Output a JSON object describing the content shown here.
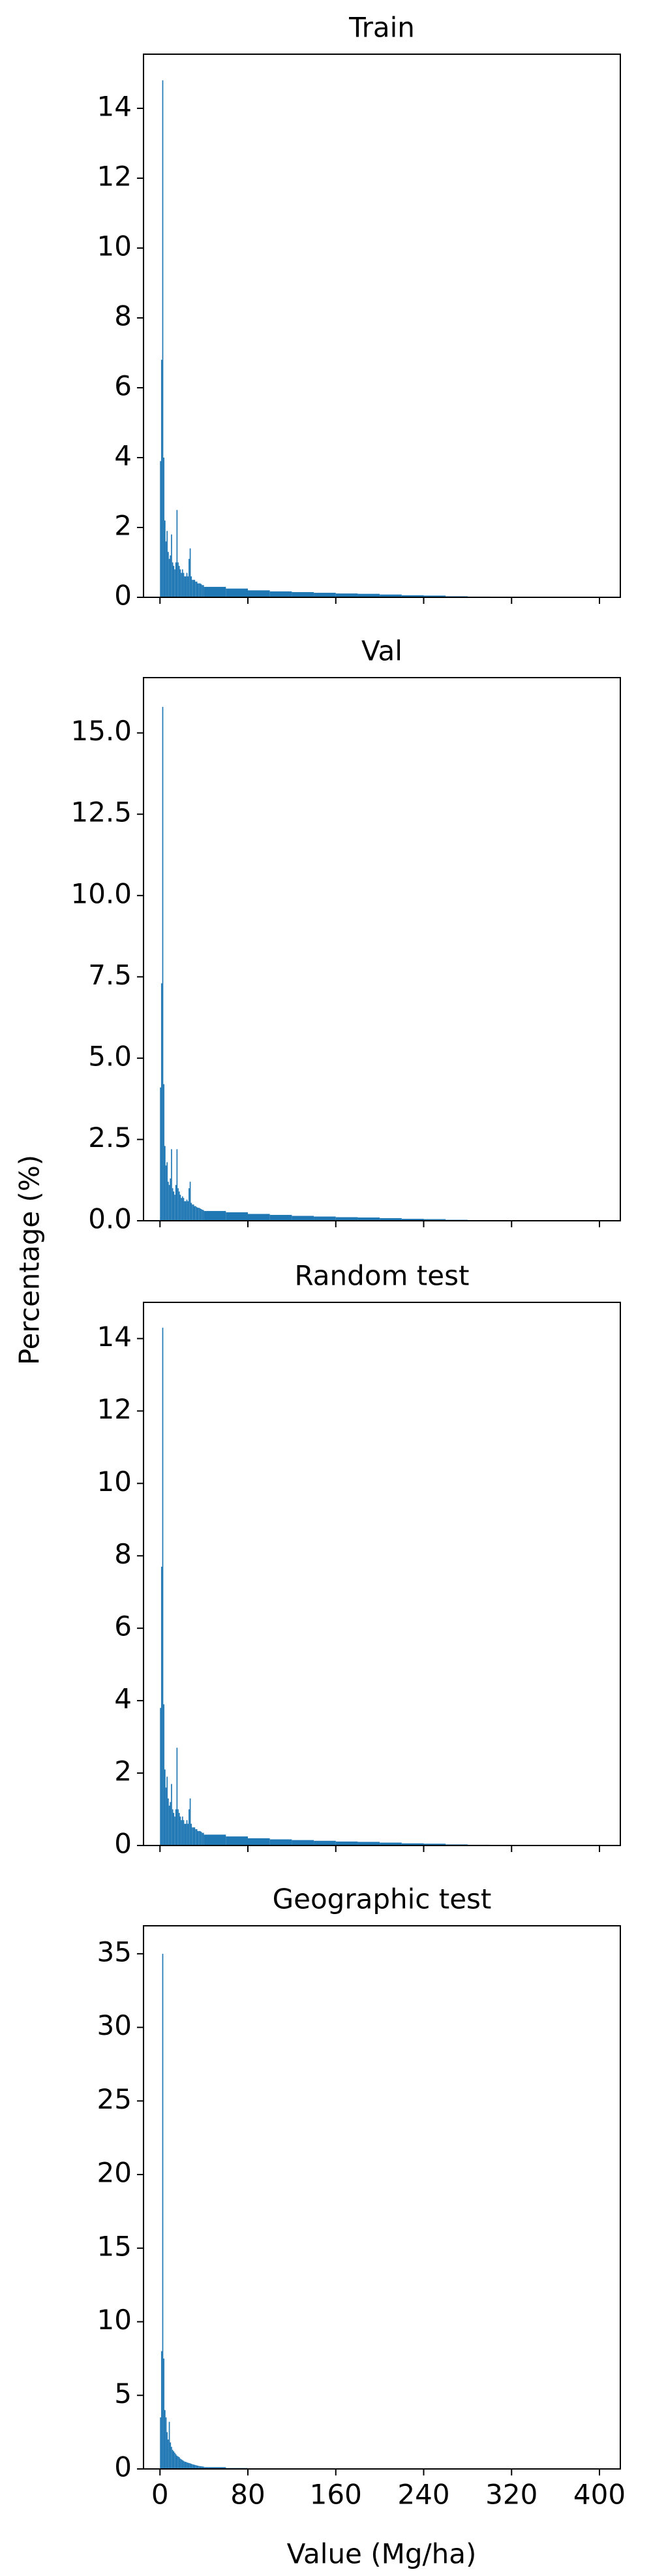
{
  "ylabel": "Percentage (%)",
  "xlabel": "Value (Mg/ha)",
  "chart_data": [
    {
      "type": "histogram",
      "title": "Train",
      "color": "#1f77b4",
      "bins": [
        0,
        1,
        2,
        3,
        4,
        5,
        6,
        7,
        8,
        9,
        10,
        11,
        12,
        13,
        14,
        15,
        16,
        17,
        18,
        19,
        20,
        21,
        22,
        23,
        24,
        25,
        26,
        27,
        28,
        29,
        30,
        31,
        32,
        33,
        34,
        35,
        36,
        37,
        38,
        39,
        40,
        60,
        80,
        100,
        120,
        140,
        160,
        180,
        200,
        220,
        240,
        260,
        280,
        300,
        320,
        340,
        360,
        380,
        400
      ],
      "values": [
        3.9,
        6.8,
        14.8,
        4.0,
        2.2,
        1.6,
        1.9,
        1.3,
        1.1,
        1.2,
        1.8,
        1.0,
        0.9,
        0.8,
        1.0,
        2.5,
        1.0,
        0.9,
        0.8,
        0.7,
        0.8,
        0.7,
        0.6,
        0.6,
        0.7,
        0.6,
        1.1,
        1.4,
        0.6,
        0.5,
        0.5,
        0.5,
        0.45,
        0.45,
        0.4,
        0.4,
        0.4,
        0.38,
        0.35,
        0.35,
        0.3,
        0.25,
        0.2,
        0.17,
        0.15,
        0.13,
        0.11,
        0.1,
        0.08,
        0.06,
        0.05,
        0.03,
        0.02,
        0.015,
        0.01,
        0.005,
        0.003,
        0.002
      ],
      "xlim": [
        -15,
        419
      ],
      "xticks": [
        0,
        80,
        160,
        240,
        320,
        400
      ],
      "ylim": [
        0,
        15.55
      ],
      "yticks": [
        0,
        2,
        4,
        6,
        8,
        10,
        12,
        14
      ]
    },
    {
      "type": "histogram",
      "title": "Val",
      "color": "#1f77b4",
      "bins": [
        0,
        1,
        2,
        3,
        4,
        5,
        6,
        7,
        8,
        9,
        10,
        11,
        12,
        13,
        14,
        15,
        16,
        17,
        18,
        19,
        20,
        21,
        22,
        23,
        24,
        25,
        26,
        27,
        28,
        29,
        30,
        31,
        32,
        33,
        34,
        35,
        36,
        37,
        38,
        39,
        40,
        60,
        80,
        100,
        120,
        140,
        160,
        180,
        200,
        220,
        240,
        260,
        280,
        300,
        320,
        340,
        360,
        380,
        400
      ],
      "values": [
        4.1,
        7.3,
        15.8,
        4.2,
        2.3,
        1.7,
        1.8,
        1.2,
        1.1,
        1.3,
        2.2,
        1.0,
        0.9,
        0.8,
        1.1,
        2.2,
        1.0,
        0.9,
        0.8,
        0.7,
        0.75,
        0.7,
        0.6,
        0.6,
        0.65,
        0.6,
        1.0,
        1.2,
        0.55,
        0.5,
        0.5,
        0.45,
        0.45,
        0.42,
        0.4,
        0.4,
        0.38,
        0.36,
        0.34,
        0.33,
        0.3,
        0.26,
        0.21,
        0.18,
        0.15,
        0.13,
        0.11,
        0.1,
        0.08,
        0.06,
        0.05,
        0.03,
        0.02,
        0.015,
        0.01,
        0.005,
        0.003,
        0.002
      ],
      "xlim": [
        -15,
        419
      ],
      "xticks": [
        0,
        80,
        160,
        240,
        320,
        400
      ],
      "ylim": [
        0,
        16.7
      ],
      "yticks": [
        {
          "value": 0,
          "label": "0.0"
        },
        {
          "value": 2.5,
          "label": "2.5"
        },
        {
          "value": 5,
          "label": "5.0"
        },
        {
          "value": 7.5,
          "label": "7.5"
        },
        {
          "value": 10,
          "label": "10.0"
        },
        {
          "value": 12.5,
          "label": "12.5"
        },
        {
          "value": 15,
          "label": "15.0"
        }
      ]
    },
    {
      "type": "histogram",
      "title": "Random test",
      "color": "#1f77b4",
      "bins": [
        0,
        1,
        2,
        3,
        4,
        5,
        6,
        7,
        8,
        9,
        10,
        11,
        12,
        13,
        14,
        15,
        16,
        17,
        18,
        19,
        20,
        21,
        22,
        23,
        24,
        25,
        26,
        27,
        28,
        29,
        30,
        31,
        32,
        33,
        34,
        35,
        36,
        37,
        38,
        39,
        40,
        60,
        80,
        100,
        120,
        140,
        160,
        180,
        200,
        220,
        240,
        260,
        280,
        300,
        320,
        340,
        360,
        380,
        400
      ],
      "values": [
        3.8,
        7.7,
        14.3,
        3.9,
        2.1,
        1.6,
        1.9,
        1.3,
        1.1,
        1.2,
        1.7,
        1.0,
        0.9,
        0.8,
        1.0,
        2.7,
        1.0,
        0.9,
        0.8,
        0.7,
        0.8,
        0.7,
        0.6,
        0.6,
        0.7,
        0.6,
        1.0,
        1.3,
        0.6,
        0.5,
        0.5,
        0.5,
        0.45,
        0.45,
        0.4,
        0.4,
        0.4,
        0.38,
        0.35,
        0.35,
        0.3,
        0.25,
        0.2,
        0.17,
        0.15,
        0.13,
        0.11,
        0.1,
        0.08,
        0.06,
        0.05,
        0.03,
        0.02,
        0.015,
        0.01,
        0.005,
        0.003,
        0.002
      ],
      "xlim": [
        -15,
        419
      ],
      "xticks": [
        0,
        80,
        160,
        240,
        320,
        400
      ],
      "ylim": [
        0,
        15.0
      ],
      "yticks": [
        0,
        2,
        4,
        6,
        8,
        10,
        12,
        14
      ]
    },
    {
      "type": "histogram",
      "title": "Geographic test",
      "color": "#1f77b4",
      "bins": [
        0,
        1,
        2,
        3,
        4,
        5,
        6,
        7,
        8,
        9,
        10,
        11,
        12,
        13,
        14,
        15,
        16,
        17,
        18,
        19,
        20,
        21,
        22,
        23,
        24,
        25,
        26,
        27,
        28,
        29,
        30,
        31,
        32,
        33,
        34,
        35,
        36,
        37,
        38,
        39,
        40,
        60,
        80,
        100,
        120,
        140,
        160,
        180,
        200,
        220,
        240,
        260,
        280,
        300,
        320,
        340,
        360,
        380,
        400
      ],
      "values": [
        3.5,
        8.0,
        35.0,
        7.5,
        4.0,
        3.5,
        2.5,
        2.0,
        3.2,
        1.8,
        1.5,
        1.3,
        1.2,
        1.1,
        1.0,
        0.9,
        0.85,
        0.8,
        0.7,
        0.65,
        0.6,
        0.55,
        0.5,
        0.48,
        0.45,
        0.42,
        0.4,
        0.38,
        0.35,
        0.32,
        0.3,
        0.28,
        0.26,
        0.24,
        0.22,
        0.2,
        0.19,
        0.18,
        0.17,
        0.16,
        0.12,
        0.06,
        0.03,
        0.015,
        0.01,
        0.005,
        0.003,
        0.002,
        0.001,
        0,
        0,
        0,
        0,
        0,
        0,
        0,
        0,
        0
      ],
      "xlim": [
        -15,
        419
      ],
      "xticks": [
        0,
        80,
        160,
        240,
        320,
        400
      ],
      "ylim": [
        0,
        36.9
      ],
      "yticks": [
        0,
        5,
        10,
        15,
        20,
        25,
        30,
        35
      ]
    }
  ]
}
